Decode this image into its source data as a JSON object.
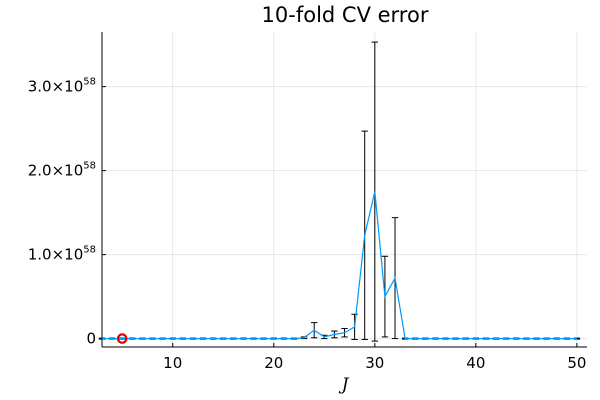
{
  "chart_data": {
    "type": "line",
    "title": "10-fold CV error",
    "xlabel": "J",
    "ylabel": "",
    "xlim": [
      3,
      51
    ],
    "ylim": [
      -1e+57,
      3.65e+58
    ],
    "x_ticks": [
      10,
      20,
      30,
      40,
      50
    ],
    "x_tick_labels": [
      "10",
      "20",
      "30",
      "40",
      "50"
    ],
    "y_ticks": [
      0,
      1e+58,
      2e+58,
      3e+58
    ],
    "y_tick_labels": [
      {
        "mantissa": "0",
        "exponent": ""
      },
      {
        "mantissa": "1.0×10",
        "exponent": "58"
      },
      {
        "mantissa": "2.0×10",
        "exponent": "58"
      },
      {
        "mantissa": "3.0×10",
        "exponent": "58"
      }
    ],
    "grid": true,
    "legend": "none",
    "series_color": "#009af9",
    "errorbar_color": "#000000",
    "marker_color": "#e60000",
    "series": [
      {
        "x": [
          1,
          2,
          3,
          4,
          5,
          6,
          7,
          8,
          9,
          10,
          11,
          12,
          13,
          14,
          15,
          16,
          17,
          18,
          19,
          20,
          21,
          22,
          23,
          24,
          25,
          26,
          27,
          28,
          29,
          30,
          31,
          32,
          33,
          34,
          35,
          36,
          37,
          38,
          39,
          40,
          41,
          42,
          43,
          44,
          45,
          46,
          47,
          48,
          49,
          50
        ],
        "y": [
          0,
          0,
          0,
          0,
          0,
          0,
          0,
          0,
          0,
          0,
          0,
          0,
          0,
          0,
          0,
          0,
          0,
          0,
          0,
          0,
          0,
          0,
          1e+56,
          1e+57,
          2e+56,
          5e+56,
          7e+56,
          1.4e+57,
          1.23e+58,
          1.75e+58,
          5e+57,
          7.2e+57,
          0,
          0,
          0,
          0,
          0,
          0,
          0,
          0,
          0,
          0,
          0,
          0,
          0,
          0,
          0,
          0,
          0,
          0
        ],
        "err": [
          0,
          0,
          0,
          0,
          0,
          0,
          0,
          0,
          0,
          0,
          0,
          0,
          0,
          0,
          0,
          0,
          0,
          0,
          0,
          0,
          0,
          0,
          1e+56,
          9e+56,
          2e+56,
          4e+56,
          5e+56,
          1.5e+57,
          1.24e+58,
          1.78e+58,
          4.8e+57,
          7.2e+57,
          0,
          0,
          0,
          0,
          0,
          0,
          0,
          0,
          0,
          0,
          0,
          0,
          0,
          0,
          0,
          0,
          0,
          0
        ]
      }
    ],
    "optimum_marker": {
      "x": 5,
      "y": 0
    }
  }
}
